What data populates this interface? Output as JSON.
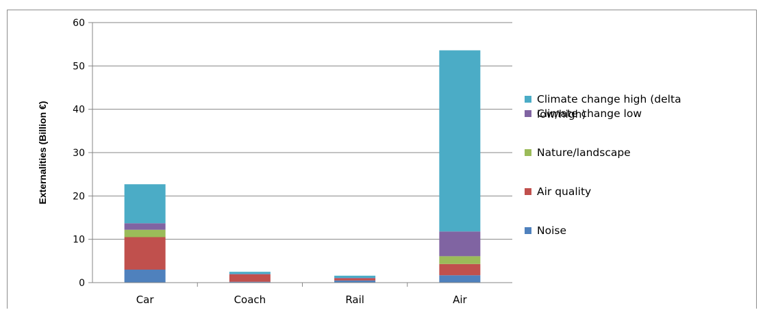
{
  "chart_data": {
    "type": "bar",
    "stacked": true,
    "categories": [
      "Car",
      "Coach",
      "Rail",
      "Air"
    ],
    "ylabel": "Externalities (Billion €)",
    "xlabel": "",
    "ylim": [
      0,
      60
    ],
    "yticks": [
      "0",
      "10",
      "20",
      "30",
      "40",
      "50",
      "60"
    ],
    "grid": true,
    "legend_position": "right",
    "series": [
      {
        "name": "Noise",
        "color": "#4f81bd",
        "values": [
          3.0,
          0.2,
          0.5,
          1.7
        ]
      },
      {
        "name": "Air quality",
        "color": "#c0504d",
        "values": [
          7.5,
          1.7,
          0.5,
          2.6
        ]
      },
      {
        "name": "Nature/landscape",
        "color": "#9bbb59",
        "values": [
          1.7,
          0.0,
          0.0,
          1.8
        ]
      },
      {
        "name": "Climate change low",
        "color": "#8064a2",
        "values": [
          1.5,
          0.1,
          0.1,
          5.7
        ]
      },
      {
        "name": "Climate change high (delta low/high)",
        "color": "#4bacc6",
        "values": [
          9.0,
          0.5,
          0.5,
          41.8
        ]
      }
    ],
    "legend_order": [
      {
        "lines": [
          "Climate change high (delta",
          "low/high)"
        ],
        "series": 4
      },
      {
        "lines": [
          "Climate change low"
        ],
        "series": 3
      },
      {
        "lines": [
          "Nature/landscape"
        ],
        "series": 2
      },
      {
        "lines": [
          "Air quality"
        ],
        "series": 1
      },
      {
        "lines": [
          "Noise"
        ],
        "series": 0
      }
    ]
  }
}
